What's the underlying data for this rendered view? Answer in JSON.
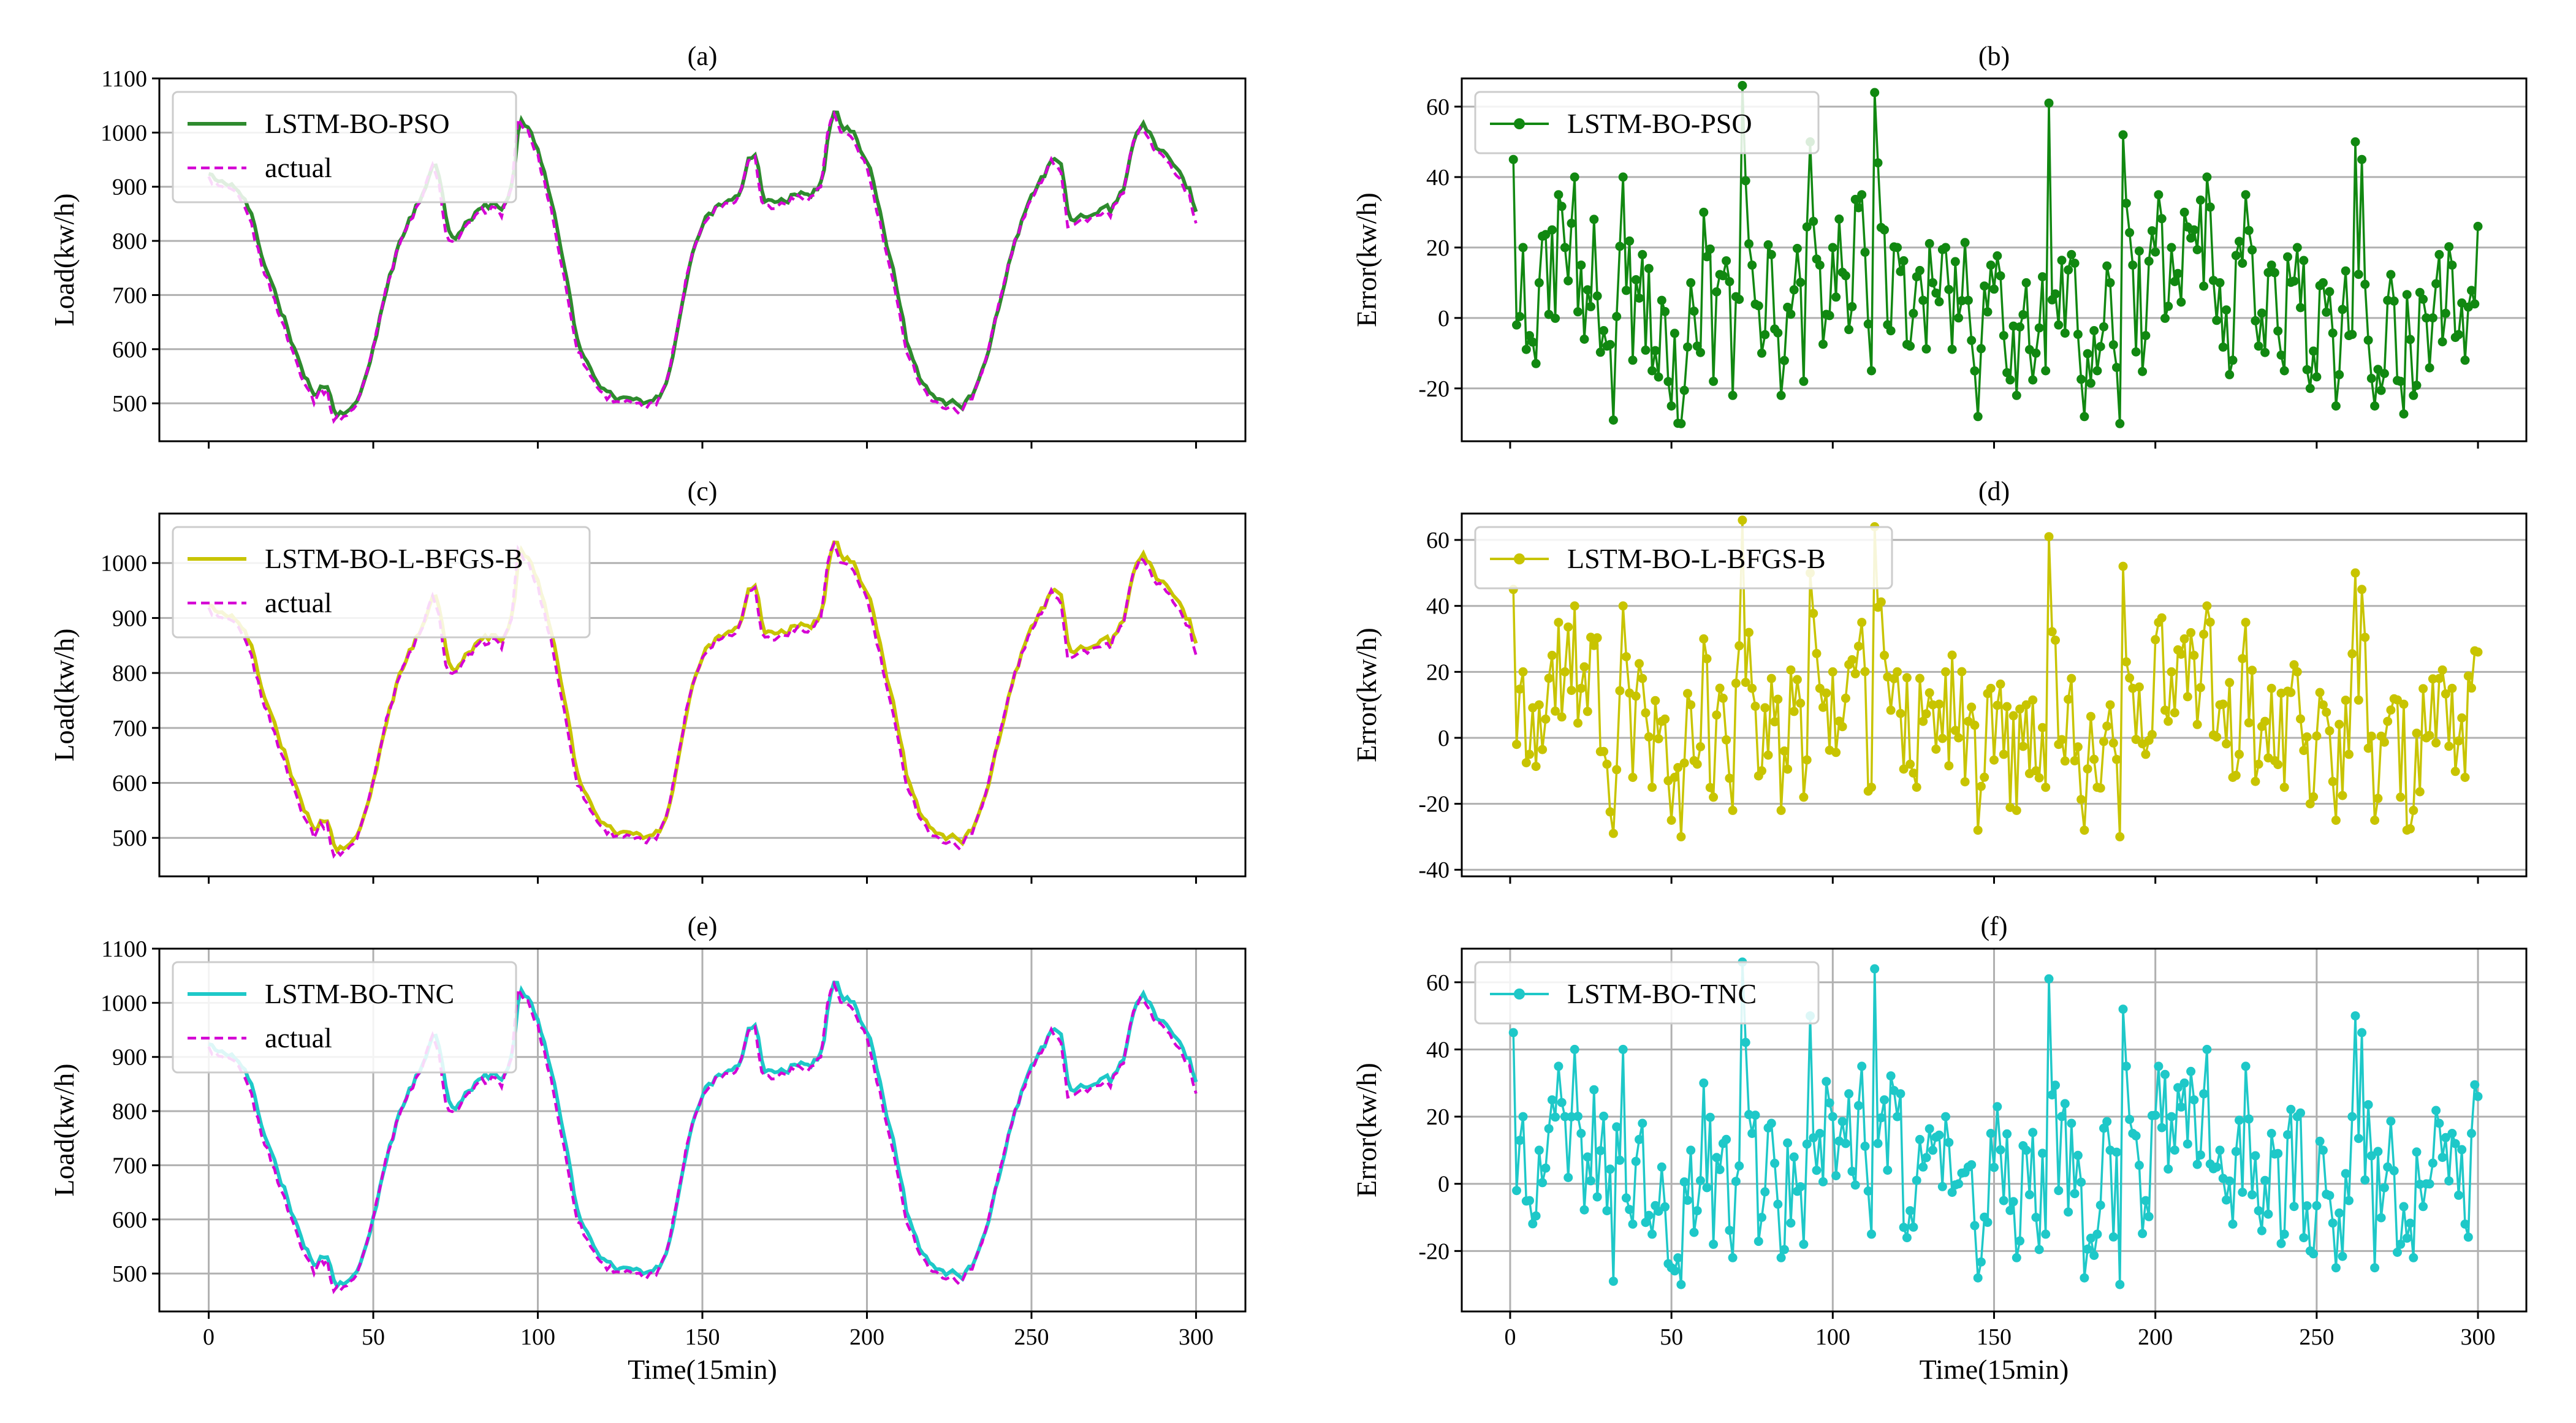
{
  "figure": {
    "panels": [
      {
        "id": "a",
        "title": "(a)",
        "ylabel": "Load(kw/h)",
        "xlabel": "",
        "kind": "load",
        "yticks": [
          500,
          600,
          700,
          800,
          900,
          1000,
          1100
        ],
        "ylim": [
          430,
          1100
        ],
        "xlim": [
          -15,
          315
        ],
        "xticks": [],
        "grid": "y",
        "legend": [
          "LSTM-BO-PSO",
          "actual"
        ],
        "pred_color": "#2e8b2e",
        "actual_color": "#d400d4",
        "legend_location": "upper left"
      },
      {
        "id": "b",
        "title": "(b)",
        "ylabel": "Error(kw/h)",
        "xlabel": "",
        "kind": "error",
        "yticks": [
          -20,
          0,
          20,
          40,
          60
        ],
        "ylim": [
          -35,
          68
        ],
        "xlim": [
          -15,
          315
        ],
        "xticks": [],
        "grid": "y",
        "legend": [
          "LSTM-BO-PSO"
        ],
        "pred_color": "#118811",
        "legend_location": "upper left"
      },
      {
        "id": "c",
        "title": "(c)",
        "ylabel": "Load(kw/h)",
        "xlabel": "",
        "kind": "load",
        "yticks": [
          500,
          600,
          700,
          800,
          900,
          1000
        ],
        "ylim": [
          430,
          1090
        ],
        "xlim": [
          -15,
          315
        ],
        "xticks": [],
        "grid": "y",
        "legend": [
          "LSTM-BO-L-BFGS-B",
          "actual"
        ],
        "pred_color": "#c8c400",
        "actual_color": "#d400d4",
        "legend_location": "upper left"
      },
      {
        "id": "d",
        "title": "(d)",
        "ylabel": "Error(kw/h)",
        "xlabel": "",
        "kind": "error",
        "yticks": [
          -40,
          -20,
          0,
          20,
          40,
          60
        ],
        "ylim": [
          -42,
          68
        ],
        "xlim": [
          -15,
          315
        ],
        "xticks": [],
        "grid": "y",
        "legend": [
          "LSTM-BO-L-BFGS-B"
        ],
        "pred_color": "#c8c400",
        "legend_location": "upper left"
      },
      {
        "id": "e",
        "title": "(e)",
        "ylabel": "Load(kw/h)",
        "xlabel": "Time(15min)",
        "kind": "load",
        "yticks": [
          500,
          600,
          700,
          800,
          900,
          1000,
          1100
        ],
        "ylim": [
          430,
          1100
        ],
        "xlim": [
          -15,
          315
        ],
        "xticks": [
          0,
          50,
          100,
          150,
          200,
          250,
          300
        ],
        "grid": "both",
        "legend": [
          "LSTM-BO-TNC",
          "actual"
        ],
        "pred_color": "#1ec8c8",
        "actual_color": "#d400d4",
        "legend_location": "upper left"
      },
      {
        "id": "f",
        "title": "(f)",
        "ylabel": "Error(kw/h)",
        "xlabel": "Time(15min)",
        "kind": "error",
        "yticks": [
          -20,
          0,
          20,
          40,
          60
        ],
        "ylim": [
          -38,
          70
        ],
        "xlim": [
          -15,
          315
        ],
        "xticks": [
          0,
          50,
          100,
          150,
          200,
          250,
          300
        ],
        "grid": "both",
        "legend": [
          "LSTM-BO-TNC"
        ],
        "pred_color": "#1ec8c8",
        "legend_location": "upper left"
      }
    ]
  },
  "chart_data": [
    {
      "type": "line",
      "title": "(a)",
      "xlabel": "",
      "ylabel": "Load(kw/h)",
      "ylim": [
        430,
        1100
      ],
      "series": [
        {
          "name": "LSTM-BO-PSO",
          "key": "load_pred"
        },
        {
          "name": "actual",
          "key": "load_actual"
        }
      ],
      "actual_keypoints": {
        "x": [
          0,
          3,
          8,
          12,
          16,
          20,
          24,
          28,
          32,
          34,
          36,
          38,
          41,
          45,
          49,
          53,
          57,
          61,
          65,
          68,
          70,
          72,
          75,
          79,
          83,
          86,
          89,
          92,
          94,
          97,
          100,
          104,
          108,
          112,
          116,
          120,
          124,
          128,
          132,
          136,
          140,
          143,
          146,
          150,
          154,
          158,
          161,
          164,
          166,
          168,
          171,
          175,
          179,
          183,
          186,
          188,
          190,
          192,
          196,
          200,
          204,
          208,
          212,
          216,
          220,
          224,
          228,
          232,
          236,
          240,
          244,
          248,
          252,
          256,
          259,
          261,
          263,
          266,
          270,
          274,
          278,
          281,
          284,
          287,
          290,
          294,
          298,
          300
        ],
        "y": [
          915,
          900,
          888,
          850,
          760,
          690,
          620,
          555,
          505,
          525,
          520,
          470,
          475,
          495,
          580,
          690,
          780,
          835,
          880,
          945,
          900,
          810,
          800,
          830,
          855,
          860,
          850,
          900,
          1020,
          1000,
          955,
          860,
          730,
          600,
          550,
          515,
          505,
          500,
          493,
          500,
          560,
          660,
          760,
          830,
          860,
          870,
          880,
          950,
          960,
          870,
          860,
          870,
          880,
          880,
          900,
          1000,
          1035,
          1000,
          985,
          935,
          830,
          720,
          600,
          540,
          500,
          495,
          485,
          510,
          580,
          680,
          780,
          850,
          900,
          950,
          930,
          830,
          830,
          840,
          845,
          850,
          890,
          990,
          1010,
          970,
          955,
          925,
          880,
          830
        ]
      }
    },
    {
      "type": "line",
      "title": "(c)",
      "xlabel": "",
      "ylabel": "Load(kw/h)",
      "ylim": [
        430,
        1090
      ],
      "series": [
        {
          "name": "LSTM-BO-L-BFGS-B",
          "key": "load_pred"
        },
        {
          "name": "actual",
          "key": "load_actual"
        }
      ]
    },
    {
      "type": "line",
      "title": "(e)",
      "xlabel": "Time(15min)",
      "ylabel": "Load(kw/h)",
      "ylim": [
        430,
        1100
      ],
      "series": [
        {
          "name": "LSTM-BO-TNC",
          "key": "load_pred"
        },
        {
          "name": "actual",
          "key": "load_actual"
        }
      ]
    },
    {
      "type": "line",
      "title": "(b)",
      "xlabel": "",
      "ylabel": "Error(kw/h)",
      "ylim": [
        -35,
        68
      ],
      "series": [
        {
          "name": "LSTM-BO-PSO",
          "key": "error"
        }
      ]
    },
    {
      "type": "line",
      "title": "(d)",
      "xlabel": "",
      "ylabel": "Error(kw/h)",
      "ylim": [
        -42,
        68
      ],
      "series": [
        {
          "name": "LSTM-BO-L-BFGS-B",
          "key": "error"
        }
      ]
    },
    {
      "type": "line",
      "title": "(f)",
      "xlabel": "Time(15min)",
      "ylabel": "Error(kw/h)",
      "ylim": [
        -38,
        70
      ],
      "series": [
        {
          "name": "LSTM-BO-TNC",
          "key": "error"
        }
      ],
      "error_keypoints": {
        "x": [
          1,
          2,
          4,
          6,
          9,
          13,
          15,
          17,
          20,
          22,
          24,
          26,
          30,
          32,
          35,
          38,
          41,
          44,
          47,
          50,
          53,
          56,
          58,
          60,
          63,
          66,
          69,
          72,
          75,
          78,
          81,
          84,
          88,
          91,
          93,
          96,
          100,
          104,
          109,
          112,
          113,
          116,
          120,
          124,
          128,
          131,
          135,
          139,
          142,
          145,
          149,
          153,
          157,
          160,
          163,
          166,
          167,
          170,
          174,
          178,
          182,
          186,
          189,
          190,
          193,
          197,
          201,
          205,
          209,
          212,
          216,
          220,
          224,
          228,
          232,
          236,
          240,
          244,
          248,
          252,
          256,
          260,
          262,
          264,
          268,
          272,
          276,
          280,
          284,
          288,
          292,
          296,
          300
        ],
        "y": [
          45,
          -2,
          20,
          -5,
          10,
          25,
          35,
          20,
          40,
          15,
          8,
          28,
          -8,
          -29,
          40,
          -12,
          18,
          -15,
          5,
          -25,
          -30,
          10,
          -8,
          30,
          -18,
          12,
          -22,
          66,
          15,
          -10,
          18,
          -22,
          8,
          -18,
          50,
          15,
          20,
          12,
          35,
          -15,
          64,
          25,
          20,
          -8,
          5,
          10,
          20,
          0,
          5,
          -28,
          15,
          -5,
          -22,
          10,
          -10,
          -15,
          61,
          -2,
          18,
          -28,
          -15,
          10,
          -30,
          52,
          15,
          -5,
          35,
          20,
          30,
          25,
          40,
          10,
          -12,
          35,
          -8,
          15,
          -15,
          20,
          -20,
          10,
          -25,
          -5,
          50,
          45,
          -25,
          5,
          -18,
          -22,
          0,
          18,
          15,
          -12,
          26
        ]
      }
    }
  ]
}
